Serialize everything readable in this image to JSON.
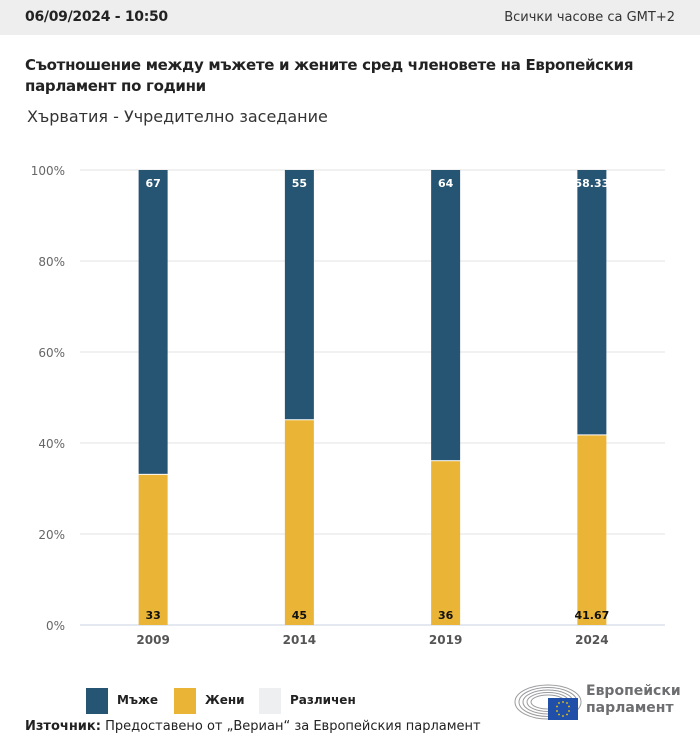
{
  "header": {
    "datetime": "06/09/2024 - 10:50",
    "timezone_note": "Всички часове са GMT+2"
  },
  "title": "Съотношение между мъжете и жените сред членовете на Европейския парламент по години",
  "subtitle": "Хърватия - Учредително заседание",
  "colors": {
    "men": "#265473",
    "women": "#eab537",
    "other": "#eeeff1",
    "grid": "#e3e3e3",
    "axis": "#c9d0e0"
  },
  "chart_data": {
    "type": "bar",
    "stacked": true,
    "normalized_percent": true,
    "title": "Съотношение между мъжете и жените сред членовете на Европейския парламент по години",
    "subtitle": "Хърватия - Учредително заседание",
    "categories": [
      "2009",
      "2014",
      "2019",
      "2024"
    ],
    "series": [
      {
        "name": "Жени",
        "color": "#eab537",
        "values": [
          33,
          45,
          36,
          41.67
        ],
        "labels": [
          "33",
          "45",
          "36",
          "41.67"
        ]
      },
      {
        "name": "Мъже",
        "color": "#265473",
        "values": [
          67,
          55,
          64,
          58.33
        ],
        "labels": [
          "67",
          "55",
          "64",
          "58.33"
        ]
      },
      {
        "name": "Различен",
        "color": "#eeeff1",
        "values": [
          0,
          0,
          0,
          0
        ],
        "labels": []
      }
    ],
    "xlabel": "",
    "ylabel": "",
    "ylim": [
      0,
      100
    ],
    "yticks": [
      "0%",
      "20%",
      "40%",
      "60%",
      "80%",
      "100%"
    ],
    "ytick_values": [
      0,
      20,
      40,
      60,
      80,
      100
    ],
    "grid": true,
    "legend_position": "bottom-left"
  },
  "legend": [
    {
      "label": "Мъже",
      "color": "#265473"
    },
    {
      "label": "Жени",
      "color": "#eab537"
    },
    {
      "label": "Различен",
      "color": "#eeeff1"
    }
  ],
  "source": {
    "label": "Източник:",
    "text": " Предоставено от „Вериан“ за Европейския парламент"
  },
  "logo": {
    "line1": "Европейски",
    "line2": "парламент"
  }
}
